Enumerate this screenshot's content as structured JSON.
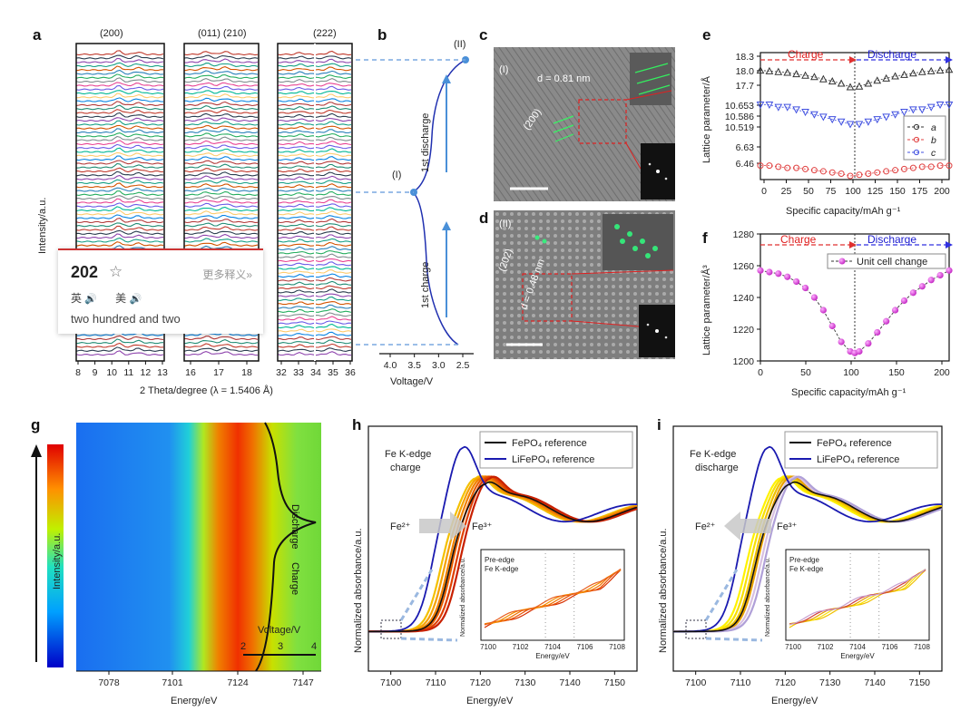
{
  "panel_labels": [
    "a",
    "b",
    "c",
    "d",
    "e",
    "f",
    "g",
    "h",
    "i"
  ],
  "panel_a": {
    "peak_labels": [
      "(200)",
      "(011) (210)",
      "(222)"
    ],
    "ylabel": "Intensity/a.u.",
    "xlabel": "2 Theta/degree (λ = 1.5406 Å)",
    "ticks1": [
      "8",
      "9",
      "10",
      "11",
      "12",
      "13"
    ],
    "ticks2": [
      "16",
      "17",
      "18"
    ],
    "ticks3": [
      "32",
      "33",
      "34",
      "35",
      "36"
    ]
  },
  "panel_b": {
    "xlabel": "Voltage/V",
    "ticks": [
      "4.0",
      "3.5",
      "3.0",
      "2.5"
    ],
    "state1": "(I)",
    "state2": "(II)",
    "charge": "1st charge",
    "discharge": "1st discharge"
  },
  "panel_c": {
    "state": "(I)",
    "d_label": "d = 0.81 nm",
    "plane": "(200)"
  },
  "panel_d": {
    "state": "(II)",
    "d_label": "d = 0.48 nm",
    "plane": "(202)"
  },
  "panel_e": {
    "ylabel": "Lattice parameter/Å",
    "xlabel": "Specific capacity/mAh g⁻¹",
    "yticks": [
      "18.3",
      "18.0",
      "17.7",
      "10.653",
      "10.586",
      "10.519",
      "6.63",
      "6.46"
    ],
    "xticks": [
      "0",
      "25",
      "50",
      "75",
      "100",
      "125",
      "150",
      "175",
      "200"
    ],
    "charge": "Charge",
    "discharge": "Discharge",
    "legend": [
      "a",
      "b",
      "c"
    ]
  },
  "panel_f": {
    "ylabel": "Lattice parameter/Å³",
    "xlabel": "Specific capacity/mAh g⁻¹",
    "yticks": [
      "1280",
      "1260",
      "1240",
      "1220",
      "1200"
    ],
    "xticks": [
      "0",
      "50",
      "100",
      "150",
      "200"
    ],
    "charge": "Charge",
    "discharge": "Discharge",
    "legend": "Unit cell change"
  },
  "panel_g": {
    "ylabel": "Intensity/a.u.",
    "xlabel": "Energy/eV",
    "xticks": [
      "7078",
      "7101",
      "7124",
      "7147"
    ],
    "discharge": "Discharge",
    "charge": "Charge",
    "voltage_label": "Voltage/V",
    "voltage_ticks": [
      "2",
      "3",
      "4"
    ]
  },
  "panel_h": {
    "legend": [
      "FePO₄ reference",
      "LiFePO₄ reference"
    ],
    "title": "Fe K-edge\ncharge",
    "fe2": "Fe²⁺",
    "fe3": "Fe³⁺",
    "ylabel": "Normalized absorbance/a.u.",
    "xlabel": "Energy/eV",
    "xticks": [
      "7100",
      "7110",
      "7120",
      "7130",
      "7140",
      "7150"
    ],
    "inset_title": "Pre-edge\nFe K-edge",
    "inset_ylabel": "Normalized absorbance/a.u.",
    "inset_xlabel": "Energy/eV",
    "inset_xticks": [
      "7100",
      "7102",
      "7104",
      "7106",
      "7108"
    ]
  },
  "panel_i": {
    "legend": [
      "FePO₄ reference",
      "LiFePO₄ reference"
    ],
    "title": "Fe K-edge\ndischarge",
    "fe2": "Fe²⁺",
    "fe3": "Fe³⁺",
    "ylabel": "Normalized absorbance/a.u.",
    "xlabel": "Energy/eV",
    "xticks": [
      "7100",
      "7110",
      "7120",
      "7130",
      "7140",
      "7150"
    ],
    "inset_title": "Pre-edge\nFe K-edge",
    "inset_ylabel": "Normalized absorbance/a.u.",
    "inset_xlabel": "Energy/eV",
    "inset_xticks": [
      "7100",
      "7102",
      "7104",
      "7106",
      "7108"
    ]
  },
  "popup": {
    "word": "202",
    "more": "更多释义»",
    "uk": "英",
    "us": "美",
    "definition": "two hundred and two"
  },
  "chart_data": [
    {
      "type": "line",
      "title": "",
      "xlabel": "Specific capacity/mAh g⁻¹",
      "ylabel": "Lattice parameter/Å³",
      "x": [
        0,
        10,
        20,
        30,
        40,
        50,
        60,
        70,
        80,
        90,
        100,
        105,
        110,
        120,
        130,
        140,
        150,
        160,
        170,
        180,
        190,
        200,
        210
      ],
      "series": [
        {
          "name": "Unit cell change",
          "values": [
            1257,
            1256,
            1255,
            1253,
            1250,
            1246,
            1240,
            1232,
            1222,
            1212,
            1206,
            1205,
            1206,
            1211,
            1218,
            1225,
            1232,
            1238,
            1243,
            1247,
            1251,
            1254,
            1257
          ]
        }
      ],
      "ylim": [
        1200,
        1280
      ],
      "xlim": [
        0,
        210
      ]
    },
    {
      "type": "line",
      "title": "",
      "xlabel": "Specific capacity/mAh g⁻¹",
      "ylabel": "Lattice parameter/Å",
      "x": [
        0,
        10,
        20,
        30,
        40,
        50,
        60,
        70,
        80,
        90,
        100,
        110,
        120,
        130,
        140,
        150,
        160,
        170,
        180,
        190,
        200,
        210
      ],
      "series": [
        {
          "name": "a",
          "values": [
            18.08,
            18.07,
            18.06,
            18.05,
            18.03,
            18.01,
            17.99,
            17.96,
            17.93,
            17.9,
            17.85,
            17.86,
            17.9,
            17.94,
            17.97,
            18.0,
            18.02,
            18.04,
            18.06,
            18.07,
            18.08,
            18.09
          ]
        },
        {
          "name": "b",
          "values": [
            6.49,
            6.49,
            6.48,
            6.47,
            6.47,
            6.46,
            6.45,
            6.44,
            6.43,
            6.42,
            6.4,
            6.41,
            6.42,
            6.43,
            6.44,
            6.45,
            6.46,
            6.47,
            6.48,
            6.48,
            6.49,
            6.49
          ]
        },
        {
          "name": "c",
          "values": [
            10.64,
            10.64,
            10.63,
            10.63,
            10.62,
            10.61,
            10.6,
            10.59,
            10.58,
            10.57,
            10.56,
            10.56,
            10.57,
            10.58,
            10.59,
            10.6,
            10.61,
            10.62,
            10.62,
            10.63,
            10.64,
            10.64
          ]
        }
      ],
      "xlim": [
        0,
        210
      ]
    }
  ]
}
